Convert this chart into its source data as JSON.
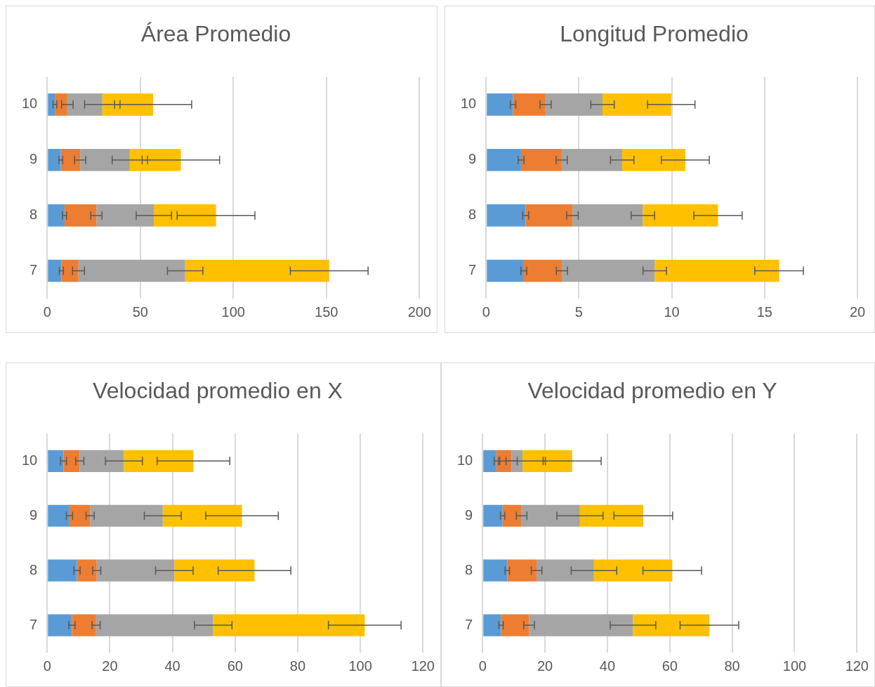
{
  "chart_data": [
    {
      "type": "bar",
      "title": "Área Promedio",
      "orientation": "horizontal",
      "stacked": true,
      "grid": "x",
      "categories": [
        "10",
        "9",
        "8",
        "7"
      ],
      "xlim": [
        0,
        200
      ],
      "xticks": [
        0,
        50,
        100,
        150,
        200
      ],
      "series": [
        {
          "color": "#5b9bd5",
          "values": [
            4.1,
            7.3,
            9.3,
            7.6
          ],
          "errors": [
            1.0,
            1.0,
            1.1,
            1.1
          ]
        },
        {
          "color": "#ed7d31",
          "values": [
            6.7,
            10.4,
            17.1,
            9.2
          ],
          "errors": [
            3.1,
            3.0,
            3.0,
            3.2
          ]
        },
        {
          "color": "#a5a5a5",
          "values": [
            18.8,
            26.7,
            30.9,
            57.3
          ],
          "errors": [
            9.5,
            9.5,
            9.5,
            9.5
          ]
        },
        {
          "color": "#ffc000",
          "values": [
            27.3,
            27.4,
            33.4,
            77.4
          ],
          "errors": [
            20.7,
            20.8,
            20.9,
            20.9
          ]
        }
      ]
    },
    {
      "type": "bar",
      "title": "Longitud Promedio",
      "orientation": "horizontal",
      "stacked": true,
      "grid": "x",
      "categories": [
        "10",
        "9",
        "8",
        "7"
      ],
      "xlim": [
        0,
        20
      ],
      "xticks": [
        0,
        5,
        10,
        15,
        20
      ],
      "series": [
        {
          "color": "#5b9bd5",
          "values": [
            1.45,
            1.88,
            2.13,
            2.03
          ],
          "errors": [
            0.15,
            0.16,
            0.16,
            0.16
          ]
        },
        {
          "color": "#ed7d31",
          "values": [
            1.75,
            2.19,
            2.52,
            2.05
          ],
          "errors": [
            0.3,
            0.3,
            0.31,
            0.3
          ]
        },
        {
          "color": "#a5a5a5",
          "values": [
            3.07,
            3.26,
            3.79,
            5.0
          ],
          "errors": [
            0.63,
            0.63,
            0.63,
            0.63
          ]
        },
        {
          "color": "#ffc000",
          "values": [
            3.7,
            3.4,
            4.05,
            6.7
          ],
          "errors": [
            1.28,
            1.29,
            1.3,
            1.31
          ]
        }
      ]
    },
    {
      "type": "bar",
      "title": "Velocidad promedio en X",
      "orientation": "horizontal",
      "stacked": true,
      "grid": "x",
      "categories": [
        "10",
        "9",
        "8",
        "7"
      ],
      "xlim": [
        0,
        120
      ],
      "xticks": [
        0,
        20,
        40,
        60,
        80,
        100,
        120
      ],
      "series": [
        {
          "color": "#5b9bd5",
          "values": [
            5.2,
            7.1,
            9.5,
            7.9
          ],
          "errors": [
            0.95,
            1.0,
            1.0,
            1.0
          ]
        },
        {
          "color": "#ed7d31",
          "values": [
            5.2,
            6.6,
            6.3,
            7.7
          ],
          "errors": [
            1.3,
            1.3,
            1.3,
            1.3
          ]
        },
        {
          "color": "#a5a5a5",
          "values": [
            14.1,
            23.2,
            24.8,
            37.4
          ],
          "errors": [
            5.9,
            5.9,
            6.0,
            6.0
          ]
        },
        {
          "color": "#ffc000",
          "values": [
            22.2,
            25.3,
            25.6,
            48.4
          ],
          "errors": [
            11.6,
            11.6,
            11.6,
            11.6
          ]
        }
      ]
    },
    {
      "type": "bar",
      "title": "Velocidad promedio en Y",
      "orientation": "horizontal",
      "stacked": true,
      "grid": "x",
      "categories": [
        "10",
        "9",
        "8",
        "7"
      ],
      "xlim": [
        0,
        120
      ],
      "xticks": [
        0,
        20,
        40,
        60,
        80,
        100,
        120
      ],
      "series": [
        {
          "color": "#5b9bd5",
          "values": [
            4.4,
            6.4,
            7.9,
            5.9
          ],
          "errors": [
            0.7,
            0.7,
            0.7,
            0.7
          ]
        },
        {
          "color": "#ed7d31",
          "values": [
            4.9,
            6.1,
            9.4,
            9.0
          ],
          "errors": [
            1.8,
            1.7,
            1.7,
            1.7
          ]
        },
        {
          "color": "#a5a5a5",
          "values": [
            3.5,
            18.7,
            18.4,
            33.3
          ],
          "errors": [
            7.3,
            7.4,
            7.3,
            7.3
          ]
        },
        {
          "color": "#ffc000",
          "values": [
            15.9,
            20.3,
            25.1,
            24.5
          ],
          "errors": [
            9.3,
            9.4,
            9.4,
            9.4
          ]
        }
      ]
    }
  ]
}
